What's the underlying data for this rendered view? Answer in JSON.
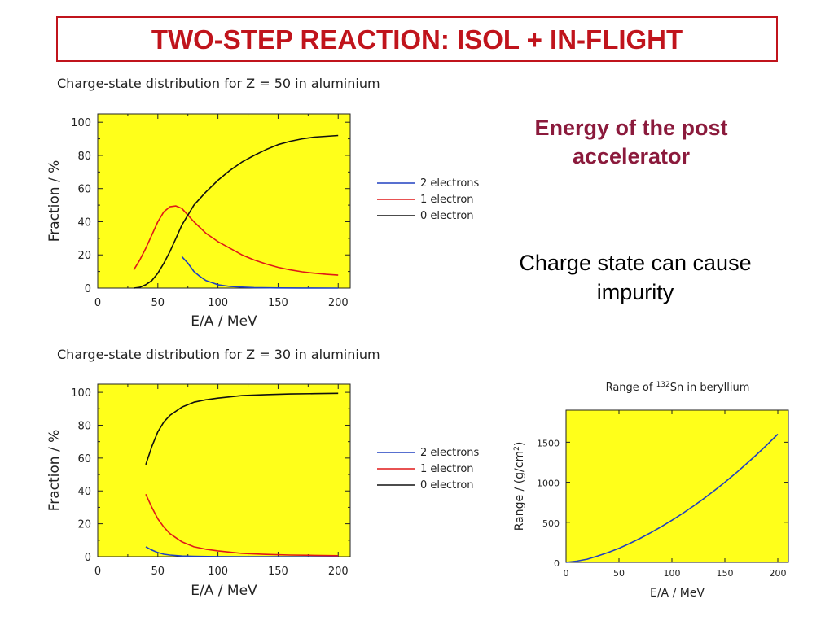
{
  "slide": {
    "title": "TWO-STEP REACTION: ISOL + IN-FLIGHT",
    "side_heading": "Energy of the post accelerator",
    "side_note": "Charge state can cause impurity",
    "colors": {
      "title": "#c0141c",
      "heading": "#8b1a3c",
      "plot_bg": "#ffff1a"
    }
  },
  "chart_data": [
    {
      "type": "line",
      "title": "Charge-state distribution for Z = 50 in aluminium",
      "xlabel": "E/A / MeV",
      "ylabel": "Fraction / %",
      "xlim": [
        0,
        210
      ],
      "ylim": [
        0,
        105
      ],
      "xticks": [
        0,
        50,
        100,
        150,
        200
      ],
      "yticks": [
        0,
        20,
        40,
        60,
        80,
        100
      ],
      "legend_position": "right",
      "series": [
        {
          "name": "2 electrons",
          "color": "#2040c0",
          "x": [
            70,
            75,
            80,
            85,
            90,
            100,
            110,
            120,
            130,
            150,
            170,
            200
          ],
          "y": [
            19,
            15,
            10,
            7,
            4.5,
            2,
            1,
            0.6,
            0.3,
            0.1,
            0.05,
            0
          ]
        },
        {
          "name": "1 electron",
          "color": "#e01818",
          "x": [
            30,
            35,
            40,
            45,
            50,
            55,
            60,
            65,
            70,
            75,
            80,
            90,
            100,
            110,
            120,
            130,
            140,
            150,
            160,
            170,
            180,
            190,
            200
          ],
          "y": [
            11,
            17,
            24,
            32,
            40,
            46,
            49,
            49.5,
            48,
            44,
            40,
            33,
            28,
            24,
            20,
            17,
            14.5,
            12.5,
            11,
            9.8,
            9,
            8.3,
            7.8
          ]
        },
        {
          "name": "0 electron",
          "color": "#101010",
          "x": [
            30,
            35,
            40,
            45,
            50,
            55,
            60,
            65,
            70,
            75,
            80,
            90,
            100,
            110,
            120,
            130,
            140,
            150,
            160,
            170,
            180,
            190,
            200
          ],
          "y": [
            0,
            0.5,
            2,
            4.5,
            9,
            15,
            22,
            30,
            38,
            44,
            50,
            58,
            65,
            71,
            76,
            80,
            83.5,
            86.5,
            88.5,
            90,
            91,
            91.5,
            92
          ]
        }
      ]
    },
    {
      "type": "line",
      "title": "Charge-state distribution for Z = 30 in aluminium",
      "xlabel": "E/A / MeV",
      "ylabel": "Fraction / %",
      "xlim": [
        0,
        210
      ],
      "ylim": [
        0,
        105
      ],
      "xticks": [
        0,
        50,
        100,
        150,
        200
      ],
      "yticks": [
        0,
        20,
        40,
        60,
        80,
        100
      ],
      "legend_position": "right",
      "series": [
        {
          "name": "2 electrons",
          "color": "#2040c0",
          "x": [
            40,
            45,
            50,
            55,
            60,
            70,
            80,
            100,
            120,
            150,
            200
          ],
          "y": [
            6,
            4,
            2.5,
            1.5,
            1,
            0.4,
            0.2,
            0.05,
            0,
            0,
            0
          ]
        },
        {
          "name": "1 electron",
          "color": "#e01818",
          "x": [
            40,
            45,
            50,
            55,
            60,
            70,
            80,
            90,
            100,
            120,
            140,
            160,
            180,
            200
          ],
          "y": [
            38,
            30,
            23,
            18,
            14,
            9,
            6,
            4.5,
            3.5,
            2,
            1.4,
            1,
            0.8,
            0.6
          ]
        },
        {
          "name": "0 electron",
          "color": "#101010",
          "x": [
            40,
            45,
            50,
            55,
            60,
            70,
            80,
            90,
            100,
            120,
            140,
            160,
            180,
            200
          ],
          "y": [
            56,
            67,
            76,
            82,
            86,
            91,
            94,
            95.5,
            96.5,
            98,
            98.6,
            99,
            99.2,
            99.4
          ]
        }
      ]
    },
    {
      "type": "line",
      "title": "Range of",
      "title_sup": "132",
      "title_rest": "Sn in beryllium",
      "xlabel": "E/A / MeV",
      "ylabel": "Range / (g/cm",
      "ylabel_sup": "2",
      "ylabel_end": ")",
      "xlim": [
        0,
        210
      ],
      "ylim": [
        0,
        1900
      ],
      "xticks": [
        0,
        50,
        100,
        150,
        200
      ],
      "yticks": [
        0,
        500,
        1000,
        1500
      ],
      "series": [
        {
          "name": "",
          "color": "#2040c0",
          "x": [
            0,
            10,
            20,
            30,
            40,
            50,
            60,
            70,
            80,
            90,
            100,
            110,
            120,
            130,
            140,
            150,
            160,
            170,
            180,
            190,
            200
          ],
          "y": [
            0,
            15,
            40,
            80,
            125,
            175,
            235,
            300,
            370,
            445,
            525,
            610,
            700,
            795,
            895,
            1000,
            1110,
            1225,
            1345,
            1470,
            1600
          ]
        }
      ]
    }
  ]
}
